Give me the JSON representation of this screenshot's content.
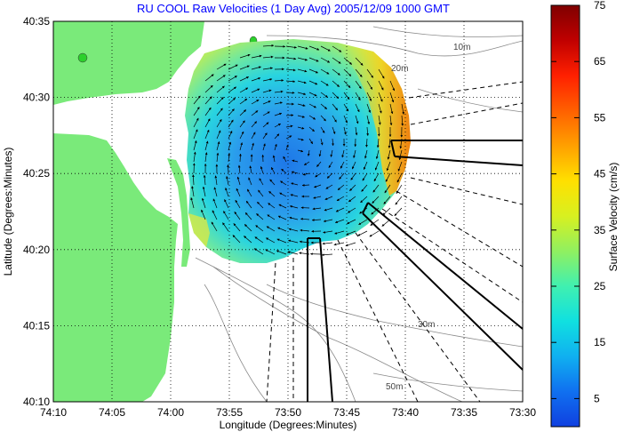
{
  "title": "RU COOL Raw Velocities (1 Day Avg) 2005/12/09 1000 GMT",
  "axes": {
    "xlabel": "Longitude (Degrees:Minutes)",
    "ylabel": "Latitude (Degrees:Minutes)",
    "x_ticks": [
      "74:10",
      "74:05",
      "74:00",
      "73:55",
      "73:50",
      "73:45",
      "73:40",
      "73:35",
      "73:30"
    ],
    "y_ticks": [
      "40:35",
      "40:30",
      "40:25",
      "40:20",
      "40:15",
      "40:10"
    ],
    "grid": "dotted"
  },
  "colorbar": {
    "label": "Surface Velocity (cm/s)",
    "ticks": [
      "75",
      "65",
      "55",
      "45",
      "35",
      "25",
      "15",
      "5"
    ],
    "min": 0,
    "max": 75,
    "colors": [
      "#7f0000",
      "#c00000",
      "#ff2000",
      "#ff6000",
      "#ffa000",
      "#ffe000",
      "#d8f020",
      "#90f060",
      "#40f0b0",
      "#10e0e0",
      "#10b0f0",
      "#1070f0",
      "#1040e0"
    ]
  },
  "contour_labels": [
    "10m",
    "20m",
    "30m",
    "50m"
  ],
  "colors": {
    "land": "#7aea7a",
    "title": "#0000ff"
  }
}
